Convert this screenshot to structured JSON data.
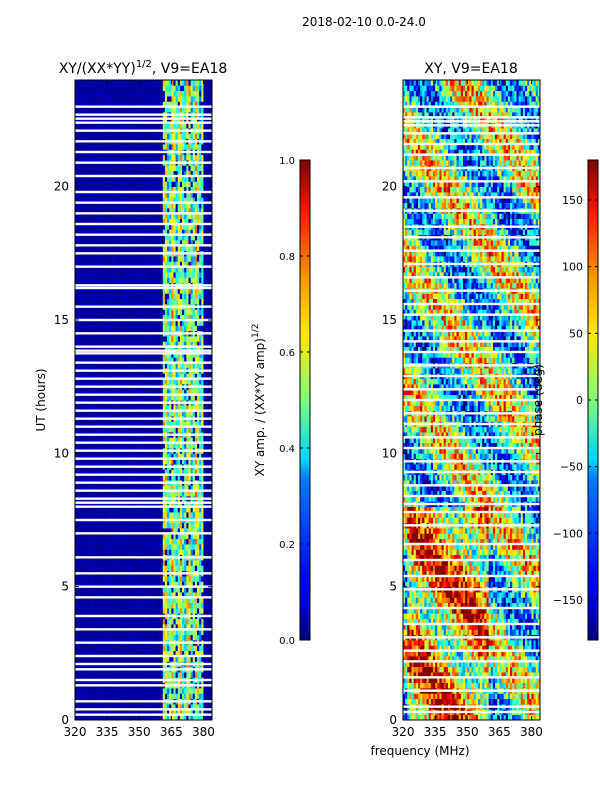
{
  "figure": {
    "suptitle": "2018-02-10 0.0-24.0",
    "common_xlabel": "frequency (MHz)"
  },
  "chart_data": [
    {
      "type": "heatmap",
      "title_main": "XY/(XX*YY)",
      "title_sup": "1/2",
      "title_tail": ", V9=EA18",
      "ylabel": "UT (hours)",
      "xlim": [
        320,
        384
      ],
      "ylim": [
        0,
        24
      ],
      "x_ticks": [
        "320",
        "335",
        "350",
        "365",
        "380"
      ],
      "x_tick_values": [
        320,
        335,
        350,
        365,
        380
      ],
      "y_ticks": [
        "0",
        "5",
        "10",
        "15",
        "20"
      ],
      "y_tick_values": [
        0,
        5,
        10,
        15,
        20
      ],
      "signal_band_mhz": [
        361,
        380
      ],
      "flagged_rows_ut": [
        0.2,
        0.4,
        0.7,
        1.3,
        1.5,
        1.9,
        2.1,
        2.4,
        2.9,
        3.4,
        3.9,
        4.6,
        5.0,
        5.5,
        6.1,
        7.0,
        7.5,
        8.0,
        8.15,
        8.3,
        8.6,
        8.9,
        9.2,
        9.5,
        9.8,
        10.1,
        10.4,
        10.7,
        11.0,
        11.3,
        11.6,
        11.9,
        12.2,
        12.5,
        12.8,
        13.1,
        13.4,
        13.75,
        13.85,
        14.0,
        14.5,
        15.0,
        15.5,
        16.2,
        16.3,
        17.0,
        17.5,
        17.8,
        18.2,
        18.6,
        19.0,
        19.4,
        19.8,
        20.4,
        20.9,
        21.3,
        21.7,
        22.1,
        22.4,
        22.55,
        22.7,
        23.0
      ],
      "colorbar": {
        "label_main": "XY amp. / (XX*YY amp)",
        "label_sup": "1/2",
        "range": [
          0.0,
          1.0
        ],
        "ticks": [
          "0.0",
          "0.2",
          "0.4",
          "0.6",
          "0.8",
          "1.0"
        ],
        "tick_values": [
          0.0,
          0.2,
          0.4,
          0.6,
          0.8,
          1.0
        ],
        "colormap": "jet"
      }
    },
    {
      "type": "heatmap",
      "title": "XY, V9=EA18",
      "xlim": [
        320,
        384
      ],
      "ylim": [
        0,
        24
      ],
      "x_ticks": [
        "320",
        "335",
        "350",
        "365",
        "380"
      ],
      "x_tick_values": [
        320,
        335,
        350,
        365,
        380
      ],
      "y_ticks": [
        "0",
        "5",
        "10",
        "15",
        "20"
      ],
      "y_tick_values": [
        0,
        5,
        10,
        15,
        20
      ],
      "flagged_rows_ut": [
        0.3,
        0.5,
        1.1,
        1.6,
        2.2,
        2.6,
        3.1,
        3.6,
        4.2,
        4.9,
        5.4,
        6.0,
        6.6,
        7.3,
        7.8,
        8.1,
        8.4,
        8.8,
        9.3,
        9.7,
        10.2,
        10.6,
        11.1,
        11.5,
        12.0,
        12.4,
        12.9,
        13.3,
        13.8,
        14.2,
        14.6,
        15.2,
        15.6,
        16.1,
        16.6,
        17.1,
        17.6,
        18.1,
        18.5,
        19.1,
        19.6,
        20.2,
        20.7,
        21.2,
        21.6,
        22.0,
        22.3,
        22.45,
        22.6,
        23.0
      ],
      "colorbar": {
        "label": "phase (deg)",
        "range": [
          -180,
          180
        ],
        "ticks": [
          "−150",
          "−100",
          "−50",
          "0",
          "50",
          "100",
          "150"
        ],
        "tick_values": [
          -150,
          -100,
          -50,
          0,
          50,
          100,
          150
        ],
        "colormap": "jet"
      }
    }
  ]
}
